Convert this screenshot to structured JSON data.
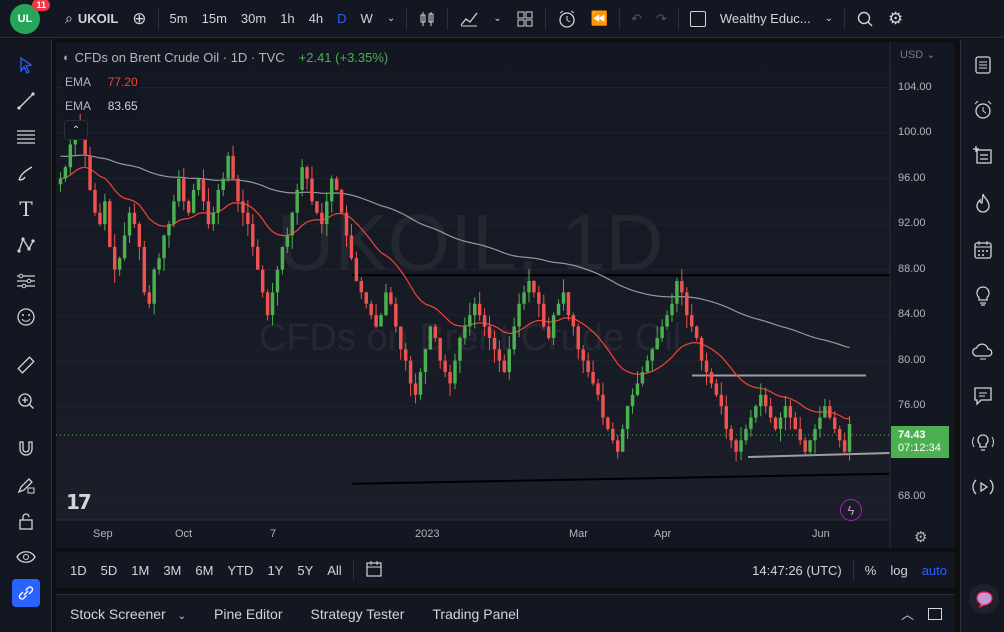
{
  "topbar": {
    "badge": "11",
    "logo_text": "UL",
    "symbol": "UKOIL",
    "intervals": [
      "5m",
      "15m",
      "30m",
      "1h",
      "4h",
      "D",
      "W"
    ],
    "active_interval": "D",
    "layout_name": "Wealthy Educ..."
  },
  "chart": {
    "title": "CFDs on Brent Crude Oil · 1D · TVC",
    "change": "+2.41 (+3.35%)",
    "watermark_symbol": "UKOIL, 1D",
    "watermark_name": "CFDs on Brent Crude Oil",
    "ema1_label": "EMA",
    "ema1_value": "77.20",
    "ema2_label": "EMA",
    "ema2_value": "83.65",
    "currency": "USD",
    "price_ticks": [
      "104.00",
      "100.00",
      "96.00",
      "92.00",
      "88.00",
      "84.00",
      "80.00",
      "76.00",
      "72.00",
      "68.00"
    ],
    "date_ticks": [
      "Sep",
      "Oct",
      "7",
      "2023",
      "Mar",
      "Apr",
      "Jun"
    ],
    "last_price": "74.43",
    "countdown": "07:12:34",
    "colors": {
      "up": "#26a69a",
      "up_bright": "#4caf50",
      "down": "#ef5350",
      "ema_fast": "#f44336",
      "ema_slow": "#9598a1",
      "price_tag": "#4caf50"
    }
  },
  "chart_data": {
    "type": "candlestick",
    "title": "CFDs on Brent Crude Oil · 1D · TVC",
    "ylim": [
      66,
      108
    ],
    "y_ticks": [
      68,
      72,
      76,
      80,
      84,
      88,
      92,
      96,
      100,
      104
    ],
    "x_labels": [
      "Sep",
      "Oct",
      "7",
      "2023",
      "Mar",
      "Apr",
      "Jun"
    ],
    "last_price": 74.43,
    "ema_fast_last": 77.2,
    "ema_slow_last": 83.65,
    "closes": [
      96,
      97,
      99,
      101,
      100,
      98,
      95,
      93,
      92,
      94,
      90,
      88,
      89,
      91,
      93,
      92,
      90,
      86,
      85,
      88,
      89,
      91,
      92,
      94,
      96,
      94,
      93,
      95,
      96,
      94,
      92,
      93,
      95,
      96,
      98,
      96,
      94,
      93,
      92,
      90,
      88,
      86,
      84,
      86,
      88,
      90,
      91,
      93,
      95,
      97,
      96,
      94,
      93,
      92,
      94,
      96,
      95,
      93,
      91,
      89,
      87,
      86,
      85,
      84,
      83,
      84,
      86,
      85,
      83,
      81,
      80,
      78,
      77,
      79,
      81,
      83,
      82,
      80,
      79,
      78,
      80,
      82,
      83,
      84,
      85,
      84,
      83,
      82,
      81,
      80,
      79,
      81,
      83,
      85,
      86,
      87,
      86,
      85,
      83,
      82,
      84,
      85,
      86,
      84,
      83,
      81,
      80,
      79,
      78,
      77,
      75,
      74,
      73,
      72,
      74,
      76,
      77,
      78,
      79,
      80,
      81,
      82,
      83,
      84,
      85,
      87,
      86,
      84,
      83,
      82,
      80,
      79,
      78,
      77,
      76,
      74,
      73,
      72,
      73,
      74,
      75,
      76,
      77,
      76,
      75,
      74,
      75,
      76,
      75,
      74,
      73,
      72,
      73,
      74,
      75,
      76,
      75,
      74,
      73,
      72,
      74.43
    ],
    "levels": [
      {
        "name": "resistance",
        "value": 87.5
      },
      {
        "name": "upper-range",
        "value": 78.7
      },
      {
        "name": "lower-range",
        "value": 71.8
      },
      {
        "name": "support-trend",
        "value": 69.8
      }
    ]
  },
  "bottombar": {
    "ranges": [
      "1D",
      "5D",
      "1M",
      "3M",
      "6M",
      "YTD",
      "1Y",
      "5Y",
      "All"
    ],
    "time": "14:47:26 (UTC)",
    "percent": "%",
    "log": "log",
    "auto": "auto"
  },
  "panelbar": {
    "tabs": [
      "Stock Screener",
      "Pine Editor",
      "Strategy Tester",
      "Trading Panel"
    ]
  }
}
